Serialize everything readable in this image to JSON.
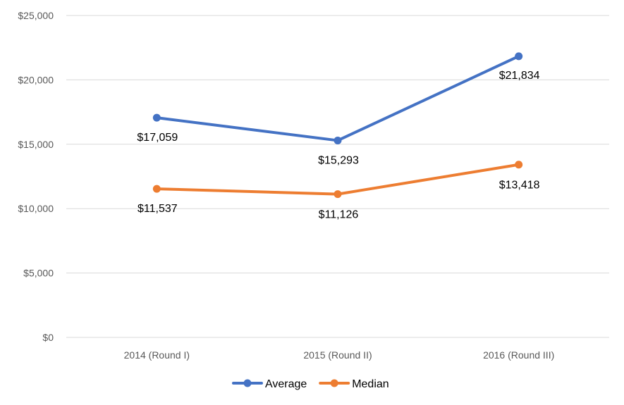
{
  "chart_data": {
    "type": "line",
    "title": "",
    "xlabel": "",
    "ylabel": "",
    "categories": [
      "2014 (Round I)",
      "2015 (Round II)",
      "2016 (Round III)"
    ],
    "ylim": [
      0,
      25000
    ],
    "y_ticks": [
      "$0",
      "$5,000",
      "$10,000",
      "$15,000",
      "$20,000",
      "$25,000"
    ],
    "grid": true,
    "legend_position": "bottom",
    "series": [
      {
        "name": "Average",
        "color": "#4472c4",
        "values": [
          17059,
          15293,
          21834
        ],
        "labels": [
          "$17,059",
          "$15,293",
          "$21,834"
        ]
      },
      {
        "name": "Median",
        "color": "#ed7d31",
        "values": [
          11537,
          11126,
          13418
        ],
        "labels": [
          "$11,537",
          "$11,126",
          "$13,418"
        ]
      }
    ]
  }
}
